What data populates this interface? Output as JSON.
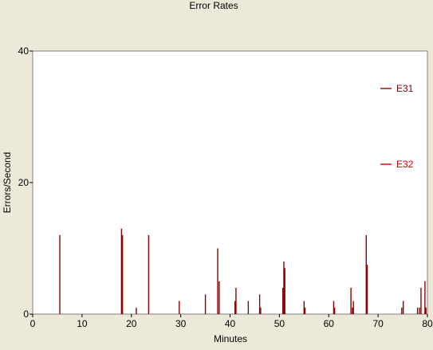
{
  "chart_data": {
    "type": "bar",
    "title": "Error Rates",
    "xlabel": "Minutes",
    "ylabel": "Errors/Second",
    "xlim": [
      0,
      80
    ],
    "ylim": [
      0,
      40
    ],
    "x_ticks": [
      0,
      10,
      20,
      30,
      40,
      50,
      60,
      70,
      80
    ],
    "y_ticks": [
      0,
      20,
      40
    ],
    "grid": false,
    "legend_position": "right",
    "series": [
      {
        "name": "E31",
        "color": "#8b0000",
        "points": [
          {
            "x": 5.5,
            "y": 12
          },
          {
            "x": 18.0,
            "y": 13
          },
          {
            "x": 18.2,
            "y": 12
          },
          {
            "x": 21.0,
            "y": 1
          },
          {
            "x": 23.5,
            "y": 12
          },
          {
            "x": 29.7,
            "y": 2
          },
          {
            "x": 35.0,
            "y": 3
          },
          {
            "x": 37.5,
            "y": 10
          },
          {
            "x": 37.8,
            "y": 5
          },
          {
            "x": 41.0,
            "y": 2
          },
          {
            "x": 41.2,
            "y": 4
          },
          {
            "x": 43.7,
            "y": 2
          },
          {
            "x": 46.0,
            "y": 3
          },
          {
            "x": 46.2,
            "y": 1
          },
          {
            "x": 50.7,
            "y": 4
          },
          {
            "x": 50.9,
            "y": 8
          },
          {
            "x": 51.1,
            "y": 7
          },
          {
            "x": 55.0,
            "y": 2
          },
          {
            "x": 55.2,
            "y": 1
          },
          {
            "x": 61.0,
            "y": 2
          },
          {
            "x": 61.2,
            "y": 1
          },
          {
            "x": 64.5,
            "y": 4
          },
          {
            "x": 64.8,
            "y": 1
          },
          {
            "x": 65.0,
            "y": 2
          },
          {
            "x": 67.6,
            "y": 12
          },
          {
            "x": 67.8,
            "y": 7.5
          },
          {
            "x": 74.8,
            "y": 1
          },
          {
            "x": 75.1,
            "y": 2
          },
          {
            "x": 78.0,
            "y": 1
          },
          {
            "x": 78.4,
            "y": 1
          },
          {
            "x": 78.7,
            "y": 4
          },
          {
            "x": 79.5,
            "y": 5
          },
          {
            "x": 79.7,
            "y": 1
          }
        ]
      },
      {
        "name": "E32",
        "color": "#cc0000",
        "points": []
      }
    ]
  }
}
